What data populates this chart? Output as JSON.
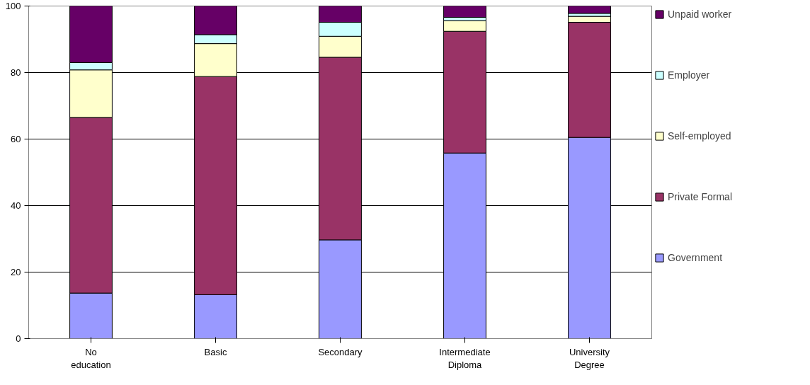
{
  "chart_data": {
    "type": "bar",
    "stacked": true,
    "categories": [
      "No education",
      "Basic",
      "Secondary",
      "Intermediate Diploma",
      "University Degree"
    ],
    "series": [
      {
        "name": "Government",
        "color": "#9999ff",
        "values": [
          13.7,
          13.2,
          29.7,
          55.8,
          60.5
        ]
      },
      {
        "name": "Private Formal",
        "color": "#993366",
        "values": [
          52.8,
          65.6,
          54.9,
          36.6,
          34.6
        ]
      },
      {
        "name": "Self-employed",
        "color": "#ffffcc",
        "values": [
          14.3,
          9.9,
          6.3,
          3.2,
          1.8
        ]
      },
      {
        "name": "Employer",
        "color": "#ccffff",
        "values": [
          2.2,
          2.7,
          4.2,
          1.0,
          0.9
        ]
      },
      {
        "name": "Unpaid worker",
        "color": "#660066",
        "values": [
          17.0,
          8.6,
          4.9,
          3.4,
          2.2
        ]
      }
    ],
    "ylim": [
      0,
      100
    ],
    "yticks": [
      0,
      20,
      40,
      60,
      80,
      100
    ],
    "grid": "y",
    "legend": "right"
  }
}
